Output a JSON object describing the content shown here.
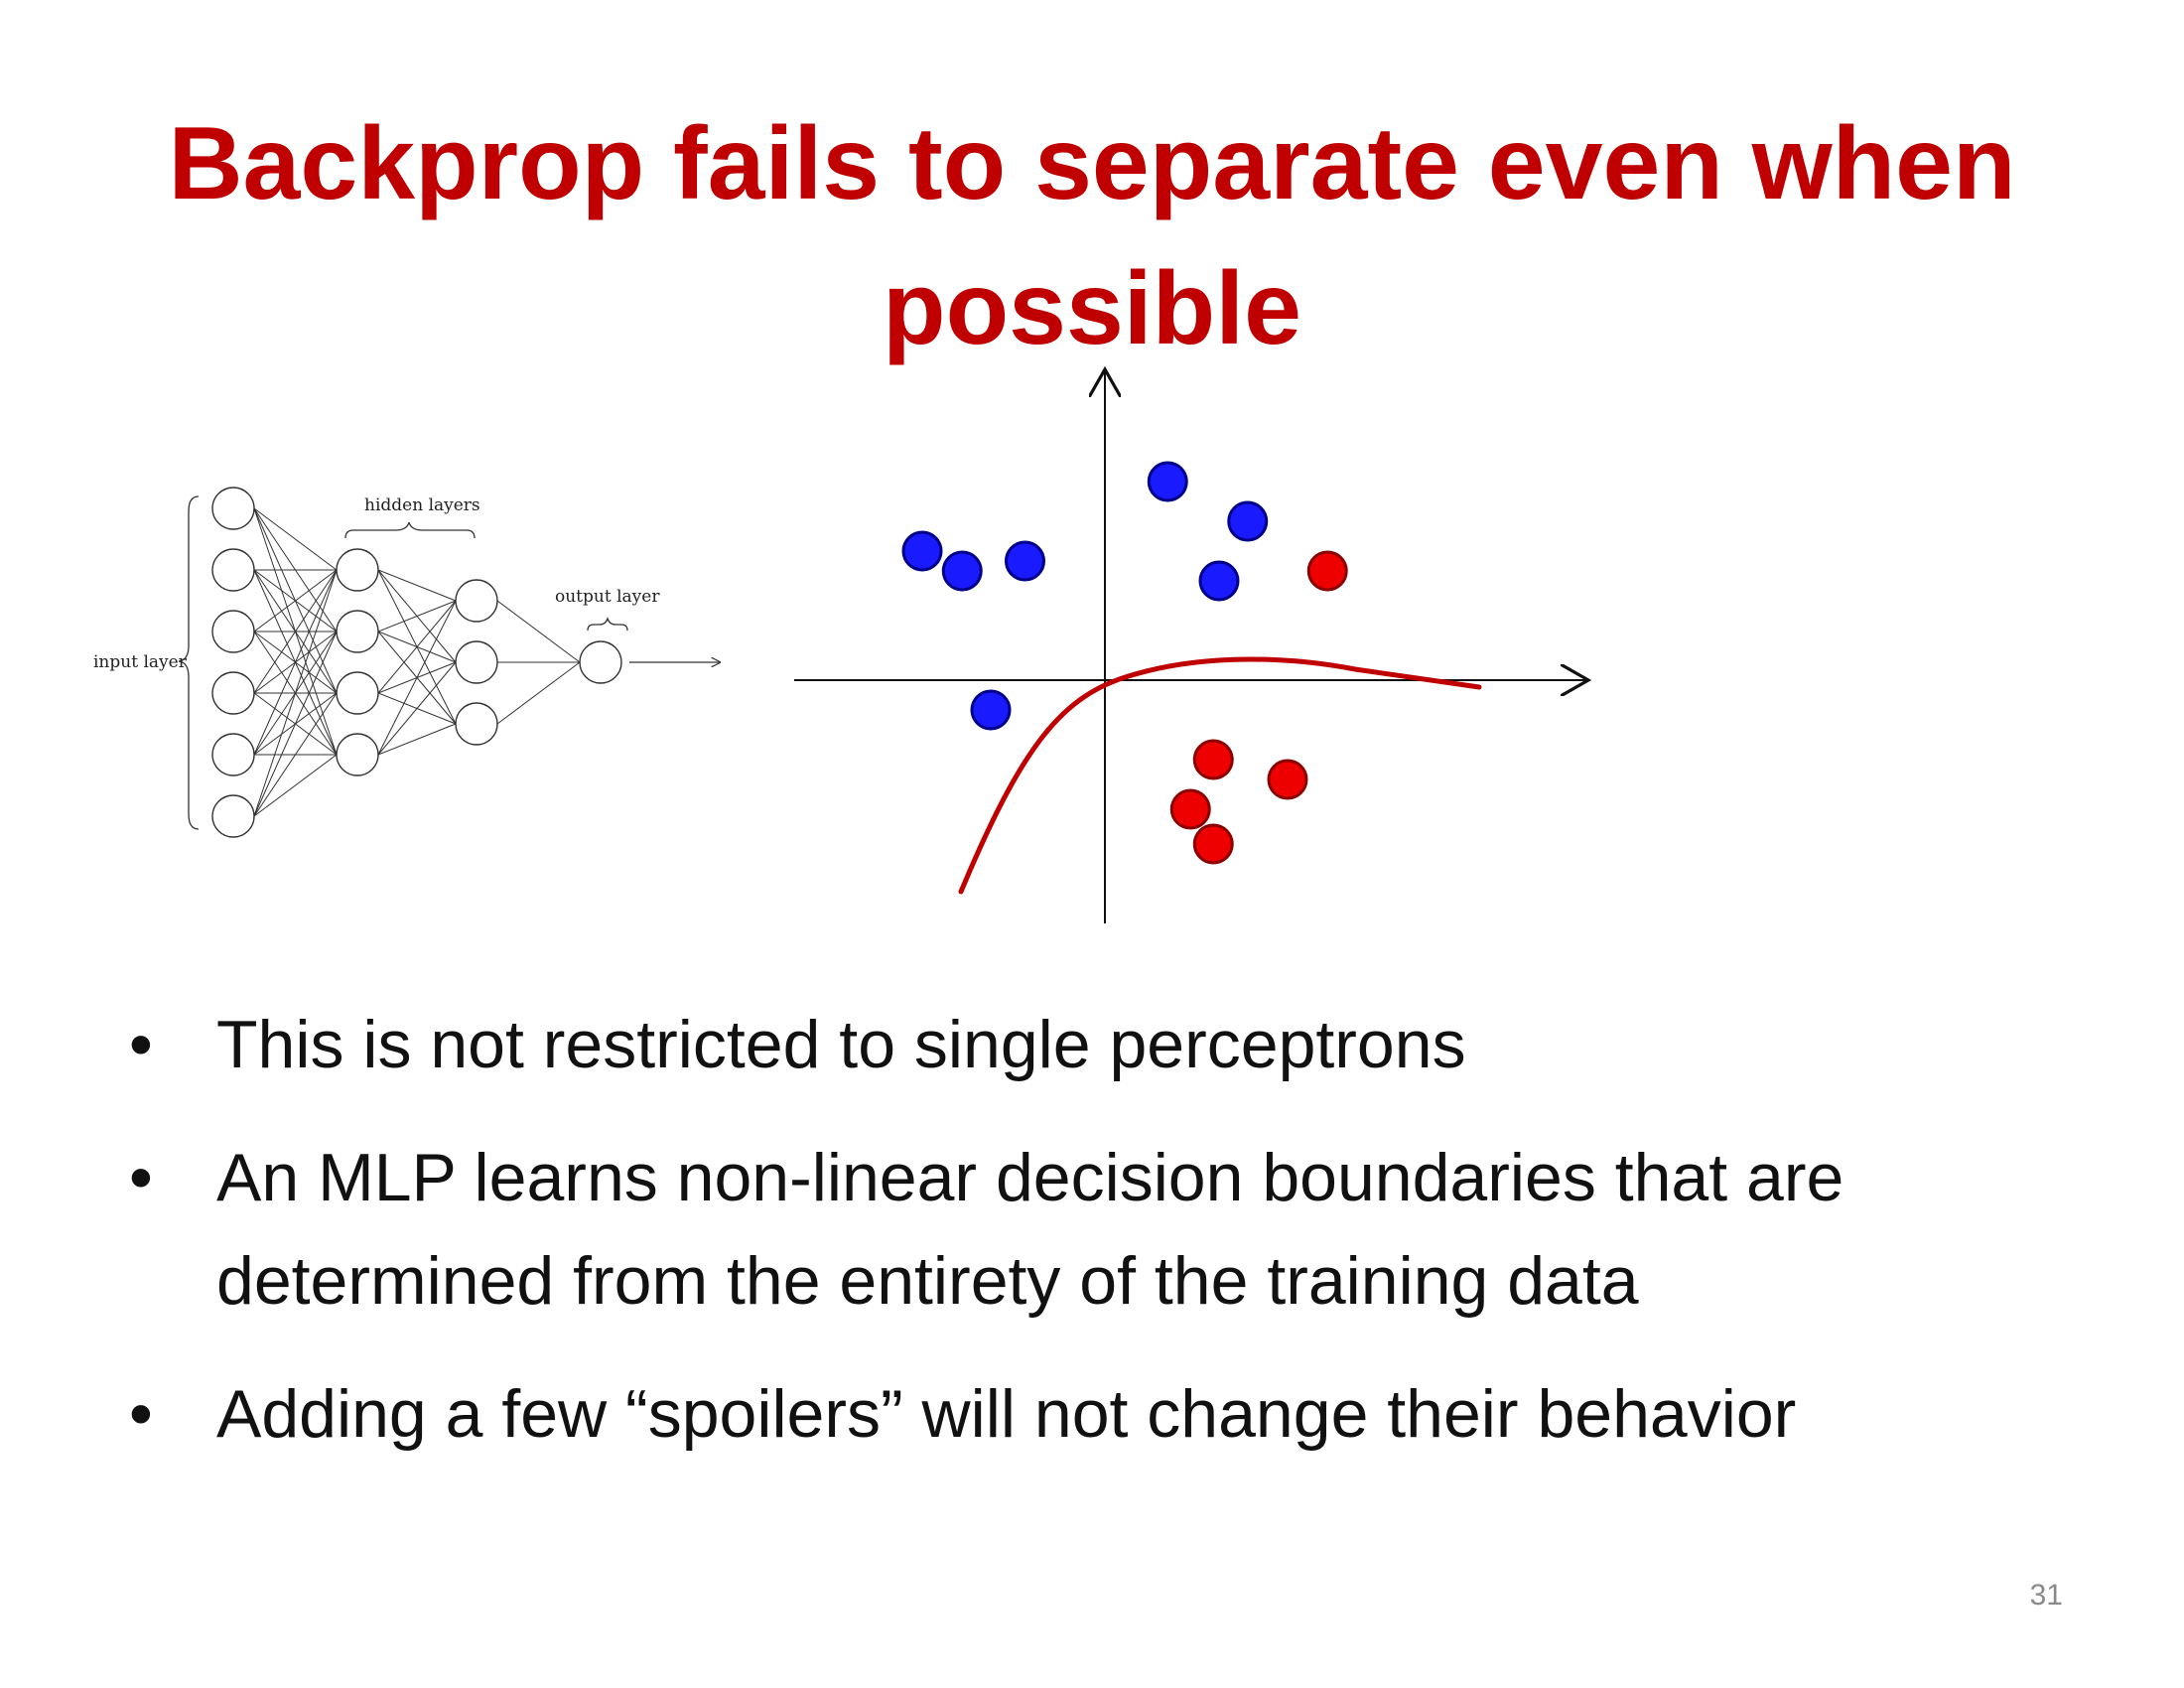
{
  "title": {
    "line1": "Backprop fails to separate even when",
    "line2": "possible"
  },
  "network": {
    "input_label": "input layer",
    "hidden_label": "hidden layers",
    "output_label": "output layer",
    "layer_sizes": [
      6,
      4,
      3,
      1
    ]
  },
  "scatter": {
    "blue_color": "#1a1aff",
    "red_color": "#ee0000",
    "curve_color": "#c00000",
    "blue_points": [
      [
        -1.6,
        1.3
      ],
      [
        -1.25,
        1.1
      ],
      [
        -0.7,
        1.2
      ],
      [
        0.55,
        2.0
      ],
      [
        1.0,
        1.0
      ],
      [
        1.25,
        1.6
      ],
      [
        -1.0,
        -0.3
      ]
    ],
    "red_points": [
      [
        1.95,
        1.1
      ],
      [
        0.95,
        -0.8
      ],
      [
        1.6,
        -1.0
      ],
      [
        0.75,
        -1.3
      ],
      [
        0.95,
        -1.65
      ]
    ]
  },
  "bullets": [
    "This is not restricted to single perceptrons",
    "An MLP learns non-linear decision boundaries that are determined from the entirety of the training data",
    "Adding a few “spoilers” will not change their behavior"
  ],
  "bullet_marker": "•",
  "page_number": "31"
}
